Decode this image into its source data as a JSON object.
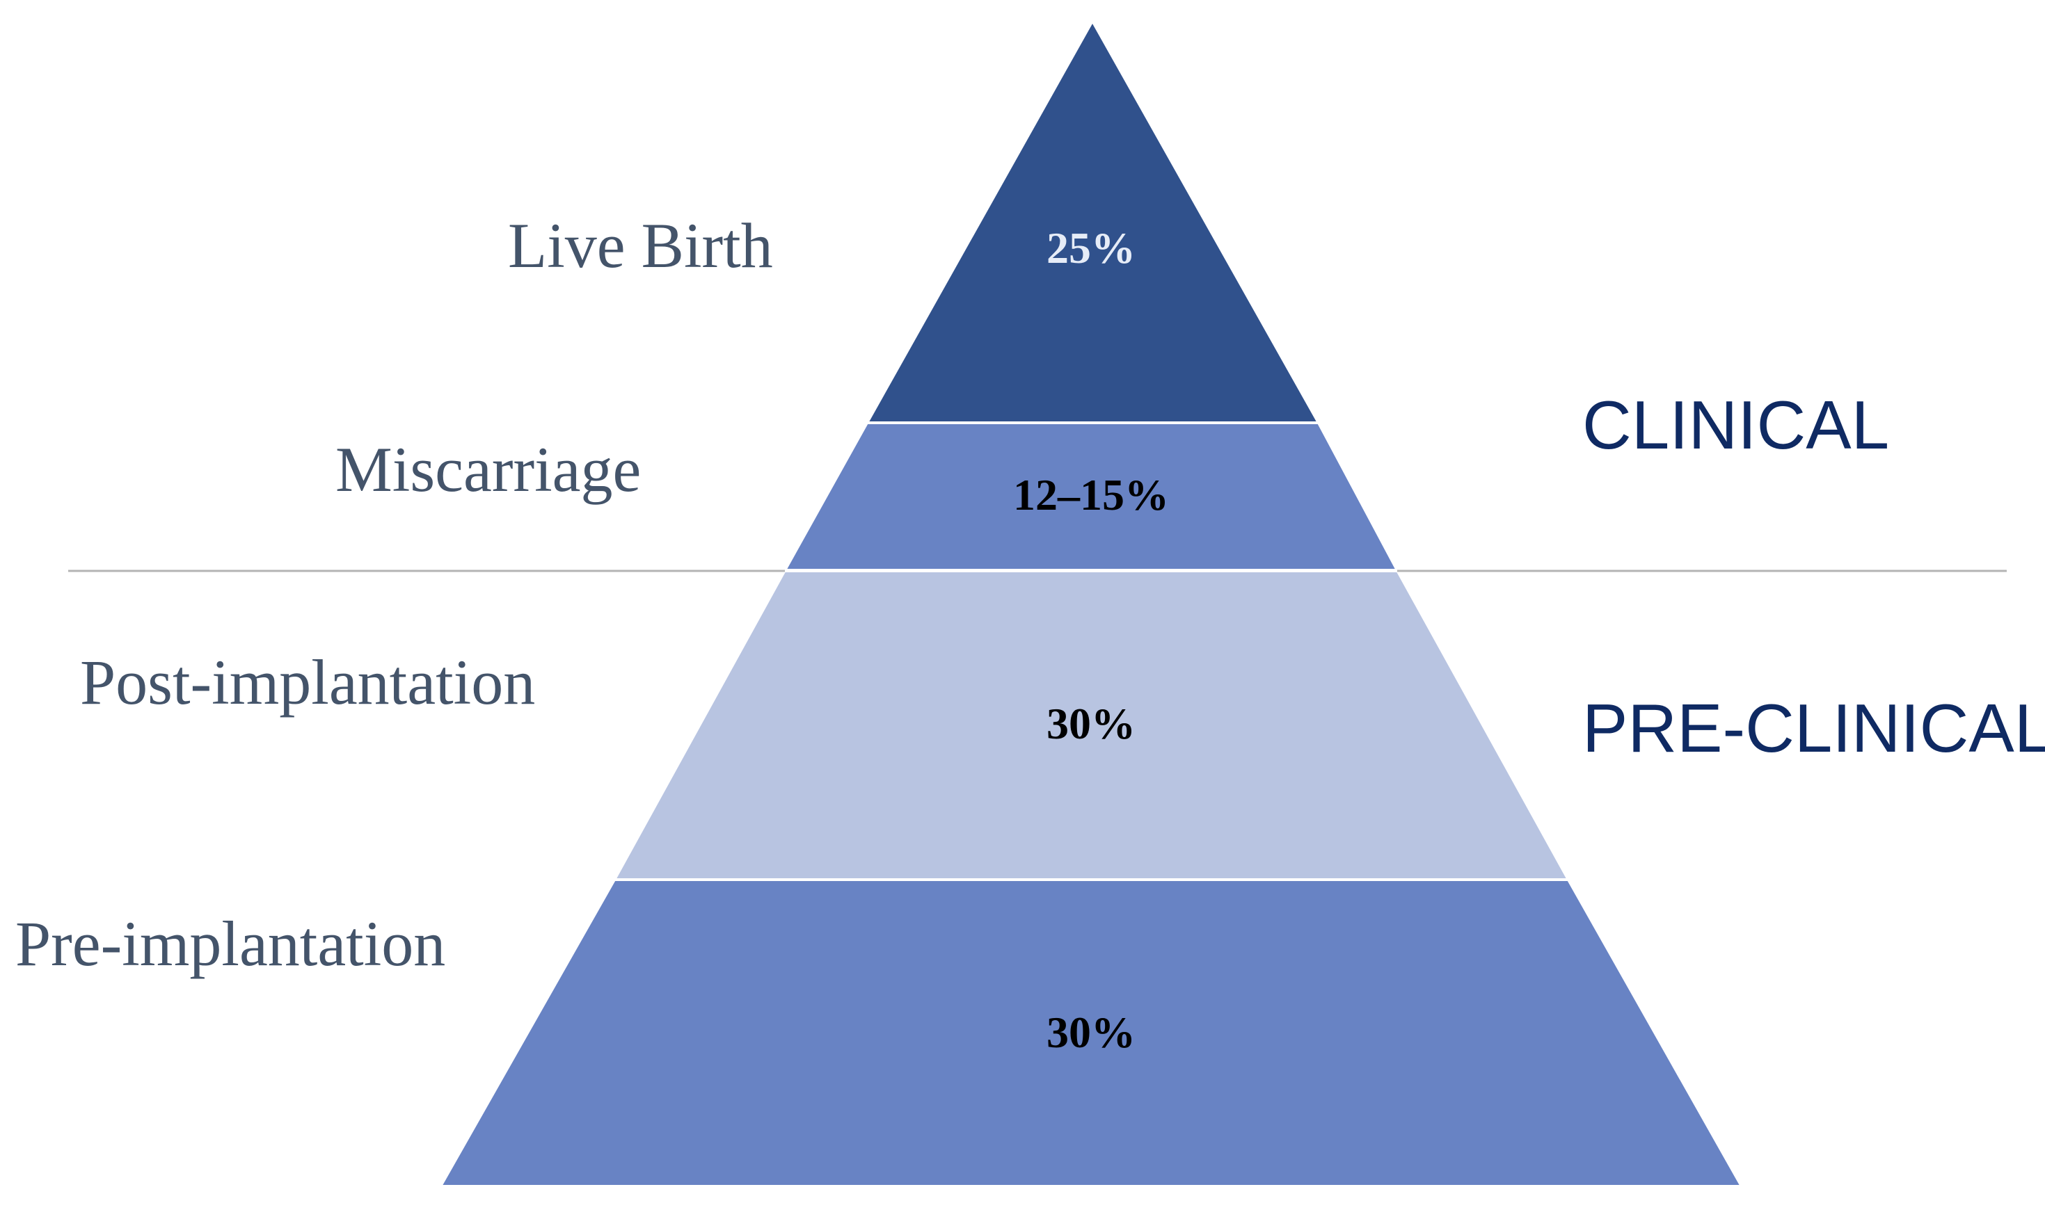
{
  "colors": {
    "live_birth": "#30518c",
    "miscarriage": "#6883c4",
    "post_implantation": "#b8c4e1",
    "pre_implantation": "#6883c4",
    "stage_text": "#44546a",
    "phase_text": "#0f2a63",
    "divider": "#b4b4b4",
    "segment_border": "#ffffff"
  },
  "tiers": [
    {
      "stage": "Live Birth",
      "value": "25%",
      "value_color": "#e6ecf7"
    },
    {
      "stage": "Miscarriage",
      "value": "12–15%",
      "value_color": "#000000"
    },
    {
      "stage": "Post-implantation",
      "value": "30%",
      "value_color": "#000000"
    },
    {
      "stage": "Pre-implantation",
      "value": "30%",
      "value_color": "#000000"
    }
  ],
  "phases": {
    "clinical": "CLINICAL",
    "pre_clinical": "PRE-CLINICAL"
  }
}
